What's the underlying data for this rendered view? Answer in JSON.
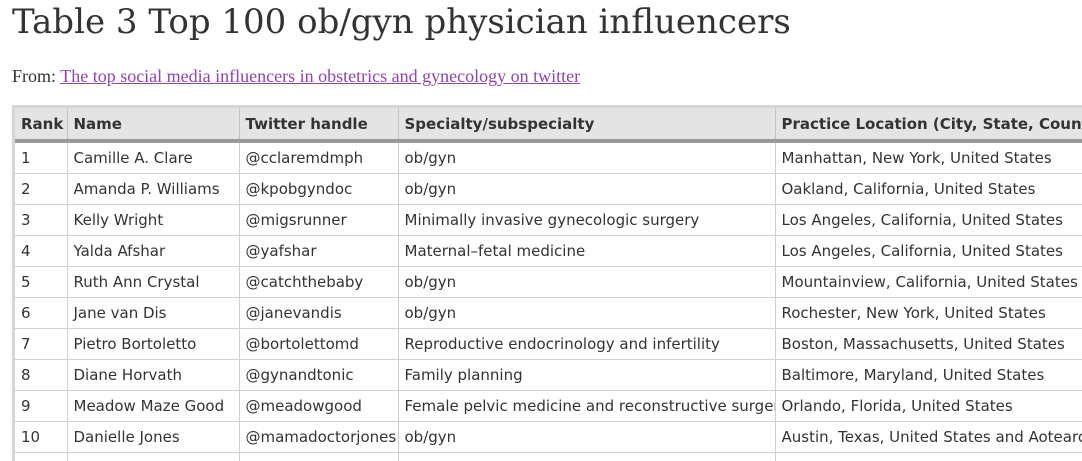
{
  "title": "Table 3 Top 100 ob/gyn physician influencers",
  "source": {
    "prefix": "From:",
    "link_text": "The top social media influencers in obstetrics and gynecology on twitter"
  },
  "table": {
    "headers": {
      "rank": "Rank",
      "name": "Name",
      "handle": "Twitter handle",
      "specialty": "Specialty/subspecialty",
      "location": "Practice Location (City, State, Country)"
    },
    "rows": [
      {
        "rank": "1",
        "name": "Camille A. Clare",
        "handle": "@ccl aremdmph",
        "specialty": "ob/gyn",
        "location": "Manhattan, New York, United States"
      },
      {
        "rank": "2",
        "name": "Amanda P. Williams",
        "handle": "@kpobgyndoc",
        "specialty": "ob/gyn",
        "location": "Oakland, California, United States"
      },
      {
        "rank": "3",
        "name": "Kelly Wright",
        "handle": "@migsrunner",
        "specialty": "Minimally invasive gynecologic surgery",
        "location": "Los Angeles, California, United States"
      },
      {
        "rank": "4",
        "name": "Yalda Afshar",
        "handle": "@yafshar",
        "specialty": "Maternal–fetal medicine",
        "location": "Los Angeles, California, United States"
      },
      {
        "rank": "5",
        "name": "Ruth Ann Crystal",
        "handle": "@catchthebaby",
        "specialty": "ob/gyn",
        "location": "Mountainview, California, United States"
      },
      {
        "rank": "6",
        "name": "Jane van Dis",
        "handle": "@janevandis",
        "specialty": "ob/gyn",
        "location": "Rochester, New York, United States"
      },
      {
        "rank": "7",
        "name": "Pietro Bortoletto",
        "handle": "@bortolettomd",
        "specialty": "Reproductive endocrinology and infertility",
        "location": "Boston, Massachusetts, United States"
      },
      {
        "rank": "8",
        "name": "Diane Horvath",
        "handle": "@gynandtonic",
        "specialty": "Family planning",
        "location": "Baltimore, Maryland, United States"
      },
      {
        "rank": "9",
        "name": "Meadow Maze Good",
        "handle": "@meadowgood",
        "specialty": "Female pelvic medicine and reconstructive surgery",
        "location": "Orlando, Florida, United States"
      },
      {
        "rank": "10",
        "name": "Danielle Jones",
        "handle": "@mamadoctorjones",
        "specialty": "ob/gyn",
        "location": "Austin, Texas, United States and Aotearoa New Zealand"
      },
      {
        "rank": "",
        "name": "",
        "handle": "",
        "specialty": "",
        "location": ""
      }
    ]
  },
  "colors": {
    "text": "#333333",
    "link": "#8e44ad",
    "header_bg": "#e4e4e4",
    "grid": "#cfcfcf"
  }
}
